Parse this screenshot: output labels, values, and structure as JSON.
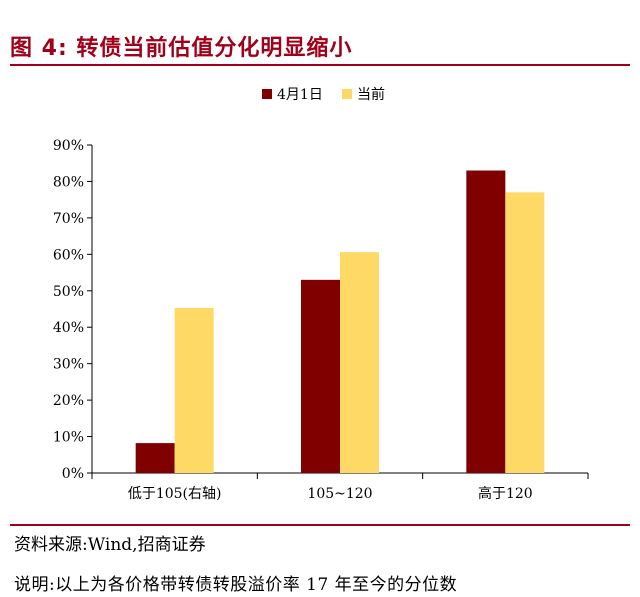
{
  "figure": {
    "title": "图 4:  转债当前估值分化明显缩小",
    "source": "资料来源:Wind,招商证券",
    "note": "说明:以上为各价格带转债转股溢价率 17 年至今的分位数"
  },
  "colors": {
    "series1": "#800000",
    "series2": "#ffd966",
    "title": "#a0001a",
    "axis": "#000000"
  },
  "chart_data": {
    "type": "bar",
    "categories": [
      "低于105(右轴)",
      "105~120",
      "高于120"
    ],
    "series": [
      {
        "name": "4月1日",
        "values": [
          8.2,
          53,
          83
        ]
      },
      {
        "name": "当前",
        "values": [
          45.3,
          60.6,
          77
        ]
      }
    ],
    "ylim": [
      0,
      90
    ],
    "yticks": [
      0,
      10,
      20,
      30,
      40,
      50,
      60,
      70,
      80,
      90
    ],
    "ytick_labels": [
      "0%",
      "10%",
      "20%",
      "30%",
      "40%",
      "50%",
      "60%",
      "70%",
      "80%",
      "90%"
    ],
    "legend_position": "top-center",
    "grid": false
  }
}
